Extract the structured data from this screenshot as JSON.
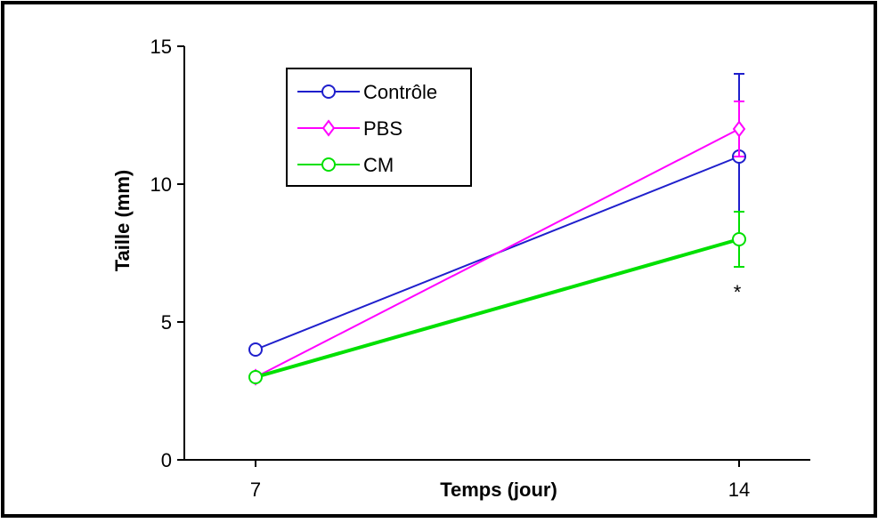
{
  "chart_data": {
    "type": "line",
    "title": "",
    "xlabel": "Temps (jour)",
    "ylabel": "Taille (mm)",
    "categories": [
      "7",
      "14"
    ],
    "ylim": [
      0,
      15
    ],
    "yticks": [
      "0",
      "5",
      "10",
      "15"
    ],
    "legend_position": "top-left",
    "series": [
      {
        "name": "Contrôle",
        "color": "#1f1fcc",
        "marker": "circle",
        "values": [
          4,
          11
        ],
        "error": [
          0,
          3
        ]
      },
      {
        "name": "PBS",
        "color": "#ff00ff",
        "marker": "diamond",
        "values": [
          3,
          12
        ],
        "error": [
          0,
          1
        ]
      },
      {
        "name": "CM",
        "color": "#00e000",
        "marker": "circle",
        "values": [
          3,
          8
        ],
        "error": [
          0,
          1
        ]
      }
    ],
    "annotation": "*"
  }
}
